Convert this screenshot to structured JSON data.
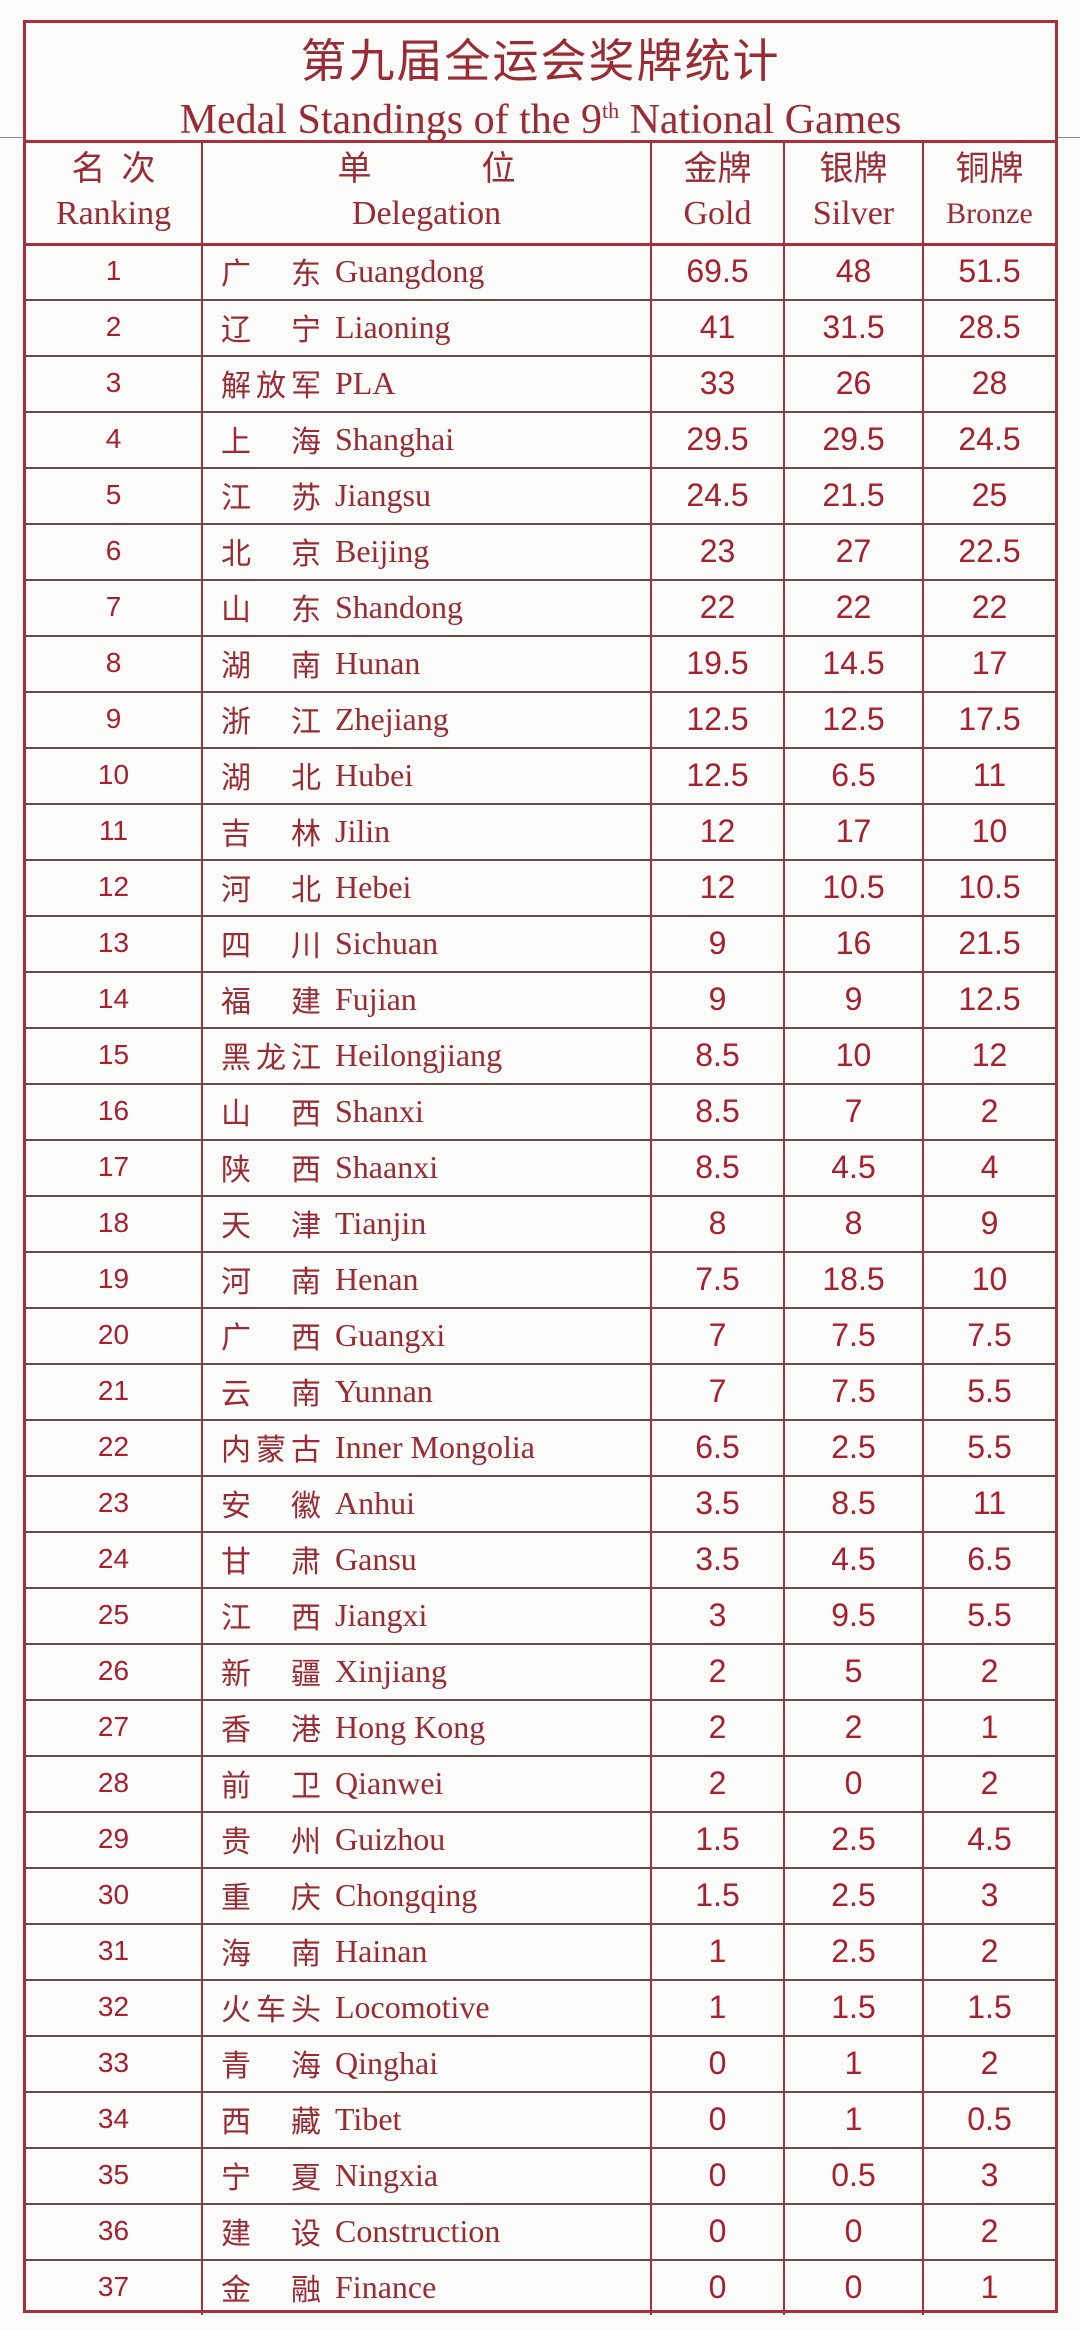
{
  "title": {
    "cn": "第九届全运会奖牌统计",
    "en_prefix": "Medal Standings of the 9",
    "en_sup": "th",
    "en_suffix": " National Games"
  },
  "headers": {
    "ranking": {
      "cn": "名次",
      "en": "Ranking"
    },
    "delegation": {
      "cn": "单位",
      "en": "Delegation"
    },
    "gold": {
      "cn": "金牌",
      "en": "Gold"
    },
    "silver": {
      "cn": "银牌",
      "en": "Silver"
    },
    "bronze": {
      "cn": "铜牌",
      "en": "Bronze"
    }
  },
  "colors": {
    "ink": "#9a2a34",
    "rule": "#a8303c"
  },
  "rows": [
    [
      "1",
      "广东",
      "Guangdong",
      "69.5",
      "48",
      "51.5"
    ],
    [
      "2",
      "辽宁",
      "Liaoning",
      "41",
      "31.5",
      "28.5"
    ],
    [
      "3",
      "解放军",
      "PLA",
      "33",
      "26",
      "28"
    ],
    [
      "4",
      "上海",
      "Shanghai",
      "29.5",
      "29.5",
      "24.5"
    ],
    [
      "5",
      "江苏",
      "Jiangsu",
      "24.5",
      "21.5",
      "25"
    ],
    [
      "6",
      "北京",
      "Beijing",
      "23",
      "27",
      "22.5"
    ],
    [
      "7",
      "山东",
      "Shandong",
      "22",
      "22",
      "22"
    ],
    [
      "8",
      "湖南",
      "Hunan",
      "19.5",
      "14.5",
      "17"
    ],
    [
      "9",
      "浙江",
      "Zhejiang",
      "12.5",
      "12.5",
      "17.5"
    ],
    [
      "10",
      "湖北",
      "Hubei",
      "12.5",
      "6.5",
      "11"
    ],
    [
      "11",
      "吉林",
      "Jilin",
      "12",
      "17",
      "10"
    ],
    [
      "12",
      "河北",
      "Hebei",
      "12",
      "10.5",
      "10.5"
    ],
    [
      "13",
      "四川",
      "Sichuan",
      "9",
      "16",
      "21.5"
    ],
    [
      "14",
      "福建",
      "Fujian",
      "9",
      "9",
      "12.5"
    ],
    [
      "15",
      "黑龙江",
      "Heilongjiang",
      "8.5",
      "10",
      "12"
    ],
    [
      "16",
      "山西",
      "Shanxi",
      "8.5",
      "7",
      "2"
    ],
    [
      "17",
      "陕西",
      "Shaanxi",
      "8.5",
      "4.5",
      "4"
    ],
    [
      "18",
      "天津",
      "Tianjin",
      "8",
      "8",
      "9"
    ],
    [
      "19",
      "河南",
      "Henan",
      "7.5",
      "18.5",
      "10"
    ],
    [
      "20",
      "广西",
      "Guangxi",
      "7",
      "7.5",
      "7.5"
    ],
    [
      "21",
      "云南",
      "Yunnan",
      "7",
      "7.5",
      "5.5"
    ],
    [
      "22",
      "内蒙古",
      "Inner Mongolia",
      "6.5",
      "2.5",
      "5.5"
    ],
    [
      "23",
      "安徽",
      "Anhui",
      "3.5",
      "8.5",
      "11"
    ],
    [
      "24",
      "甘肃",
      "Gansu",
      "3.5",
      "4.5",
      "6.5"
    ],
    [
      "25",
      "江西",
      "Jiangxi",
      "3",
      "9.5",
      "5.5"
    ],
    [
      "26",
      "新疆",
      "Xinjiang",
      "2",
      "5",
      "2"
    ],
    [
      "27",
      "香港",
      "Hong Kong",
      "2",
      "2",
      "1"
    ],
    [
      "28",
      "前卫",
      "Qianwei",
      "2",
      "0",
      "2"
    ],
    [
      "29",
      "贵州",
      "Guizhou",
      "1.5",
      "2.5",
      "4.5"
    ],
    [
      "30",
      "重庆",
      "Chongqing",
      "1.5",
      "2.5",
      "3"
    ],
    [
      "31",
      "海南",
      "Hainan",
      "1",
      "2.5",
      "2"
    ],
    [
      "32",
      "火车头",
      "Locomotive",
      "1",
      "1.5",
      "1.5"
    ],
    [
      "33",
      "青海",
      "Qinghai",
      "0",
      "1",
      "2"
    ],
    [
      "34",
      "西藏",
      "Tibet",
      "0",
      "1",
      "0.5"
    ],
    [
      "35",
      "宁夏",
      "Ningxia",
      "0",
      "0.5",
      "3"
    ],
    [
      "36",
      "建设",
      "Construction",
      "0",
      "0",
      "2"
    ],
    [
      "37",
      "金融",
      "Finance",
      "0",
      "0",
      "1"
    ]
  ]
}
